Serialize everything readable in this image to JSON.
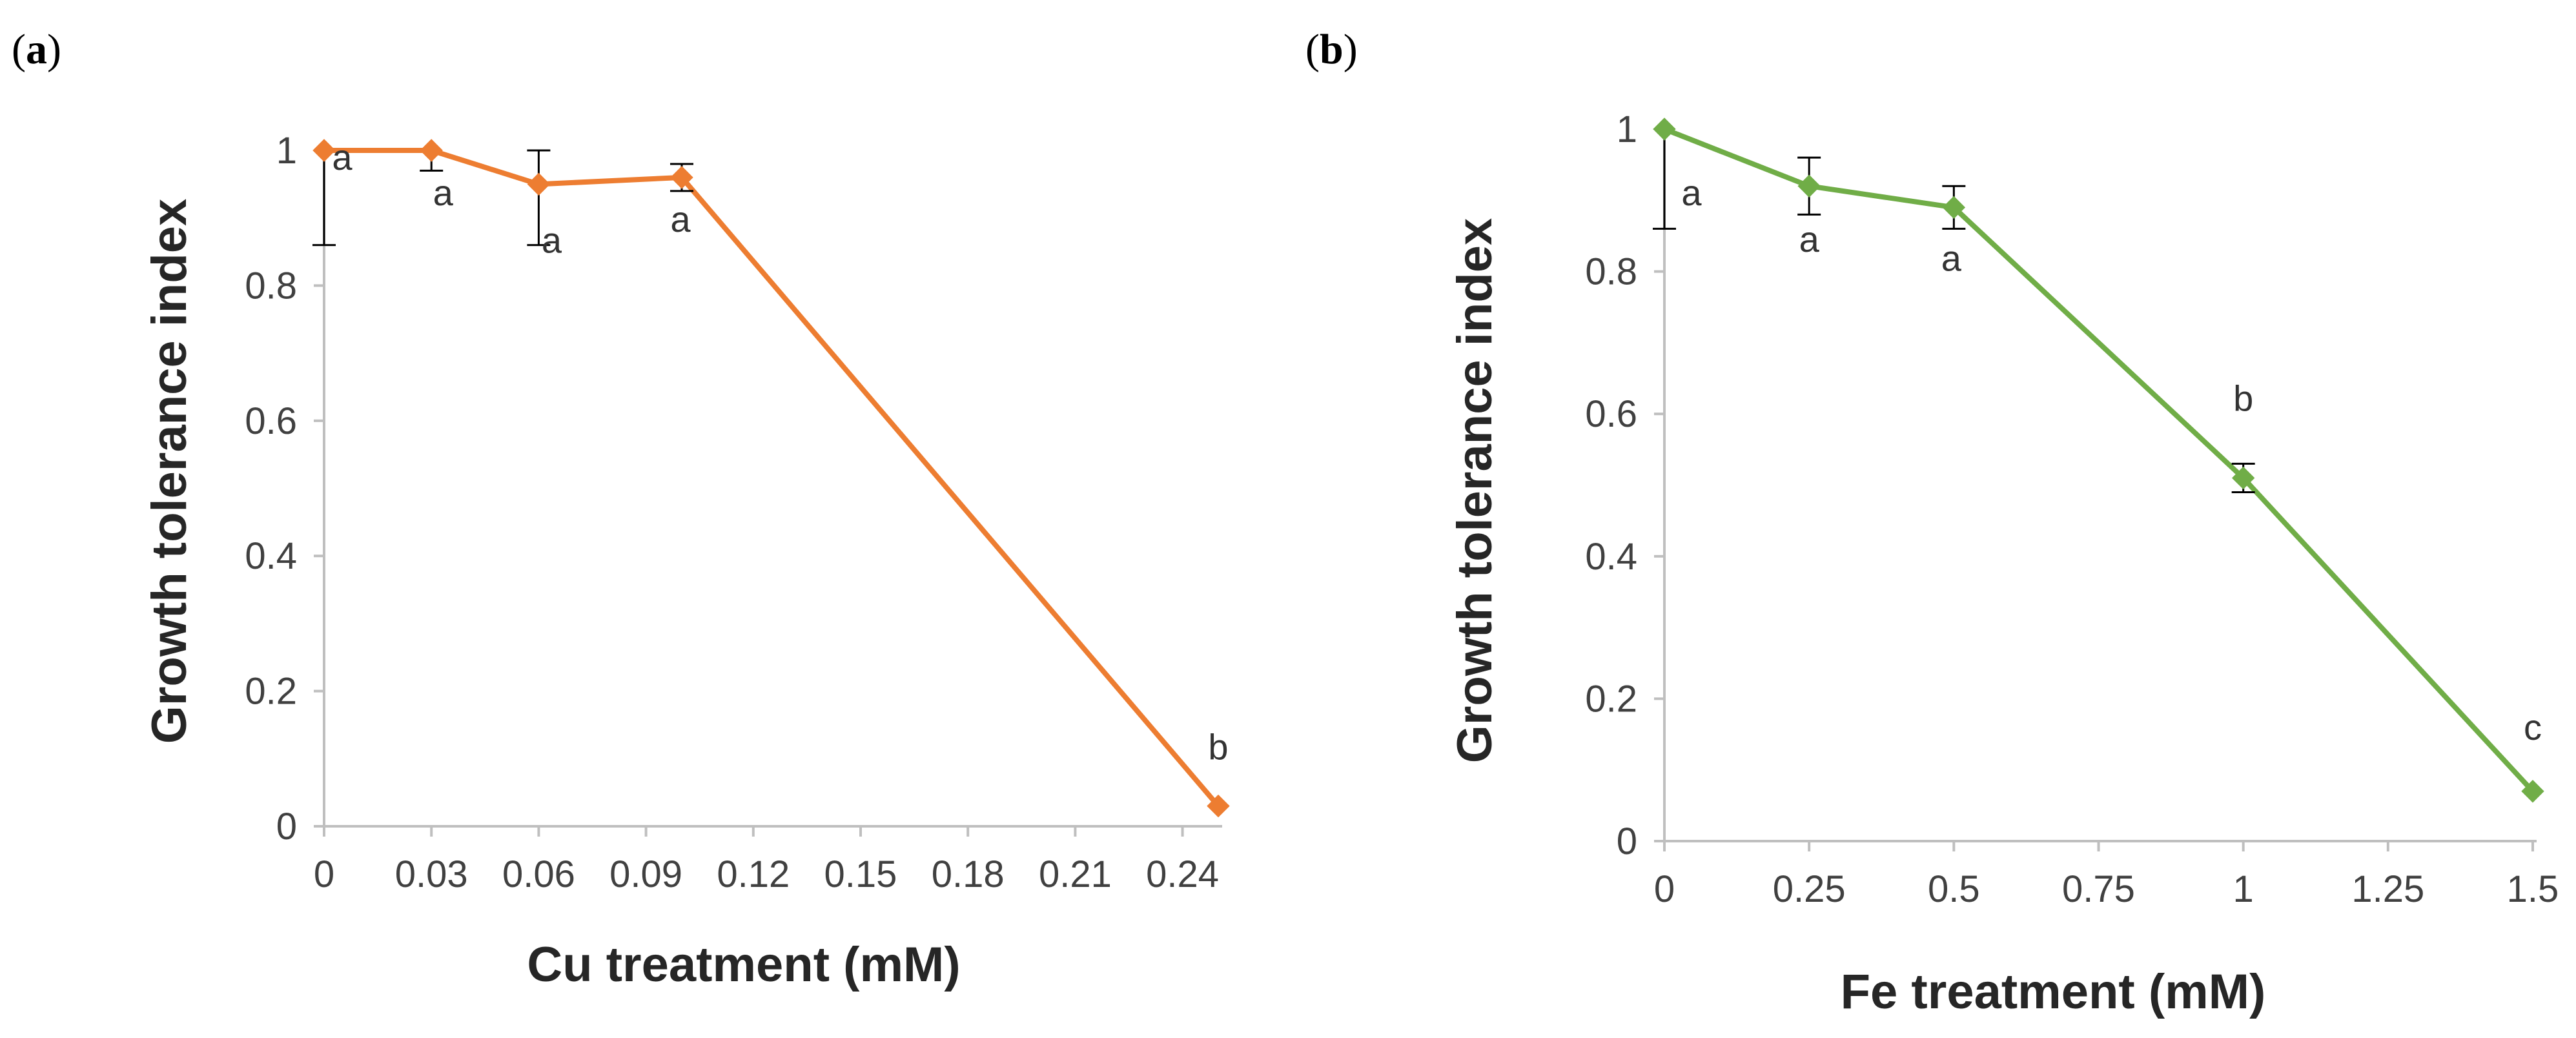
{
  "chart_data": [
    {
      "type": "line",
      "panel": "a",
      "panel_label": [
        "(",
        "a",
        ")"
      ],
      "color": "#ED7D31",
      "marker": "diamond",
      "x": [
        0,
        0.03,
        0.06,
        0.1,
        0.25
      ],
      "y": [
        1.0,
        1.0,
        0.95,
        0.96,
        0.03
      ],
      "error_bars": [
        {
          "x": 0,
          "plus": 0,
          "minus": 0.14
        },
        {
          "x": 0.03,
          "plus": 0,
          "minus": 0.03
        },
        {
          "x": 0.06,
          "plus": 0.05,
          "minus": 0.09
        },
        {
          "x": 0.1,
          "plus": 0.02,
          "minus": 0.02
        },
        {
          "x": 0.25,
          "plus": 0,
          "minus": 0
        }
      ],
      "significance": [
        "a",
        "a",
        "a",
        "a",
        "b"
      ],
      "xticks": [
        0,
        0.03,
        0.06,
        0.09,
        0.12,
        0.15,
        0.18,
        0.21,
        0.24
      ],
      "xtick_labels": [
        "0",
        "0.03",
        "0.06",
        "0.09",
        "0.12",
        "0.15",
        "0.18",
        "0.21",
        "0.24"
      ],
      "yticks": [
        0,
        0.2,
        0.4,
        0.6,
        0.8,
        1
      ],
      "ytick_labels": [
        "0",
        "0.2",
        "0.4",
        "0.6",
        "0.8",
        "1"
      ],
      "xlim": [
        0,
        0.25
      ],
      "ylim": [
        0,
        1
      ],
      "xlabel": "Cu treatment (mM)",
      "ylabel": "Growth tolerance index"
    },
    {
      "type": "line",
      "panel": "b",
      "panel_label": [
        "(",
        "b",
        ")"
      ],
      "color": "#70AD47",
      "marker": "diamond",
      "x": [
        0,
        0.25,
        0.5,
        1.0,
        1.5
      ],
      "y": [
        1.0,
        0.92,
        0.89,
        0.51,
        0.07
      ],
      "error_bars": [
        {
          "x": 0,
          "plus": 0,
          "minus": 0.14
        },
        {
          "x": 0.25,
          "plus": 0.04,
          "minus": 0.04
        },
        {
          "x": 0.5,
          "plus": 0.03,
          "minus": 0.03
        },
        {
          "x": 1.0,
          "plus": 0.02,
          "minus": 0.02
        },
        {
          "x": 1.5,
          "plus": 0,
          "minus": 0
        }
      ],
      "significance": [
        "a",
        "a",
        "a",
        "b",
        "c"
      ],
      "xticks": [
        0,
        0.25,
        0.5,
        0.75,
        1,
        1.25,
        1.5
      ],
      "xtick_labels": [
        "0",
        "0.25",
        "0.5",
        "0.75",
        "1",
        "1.25",
        "1.5"
      ],
      "yticks": [
        0,
        0.2,
        0.4,
        0.6,
        0.8,
        1
      ],
      "ytick_labels": [
        "0",
        "0.2",
        "0.4",
        "0.6",
        "0.8",
        "1"
      ],
      "xlim": [
        0,
        1.5
      ],
      "ylim": [
        0,
        1
      ],
      "xlabel": "Fe treatment (mM)",
      "ylabel": "Growth tolerance index"
    }
  ]
}
